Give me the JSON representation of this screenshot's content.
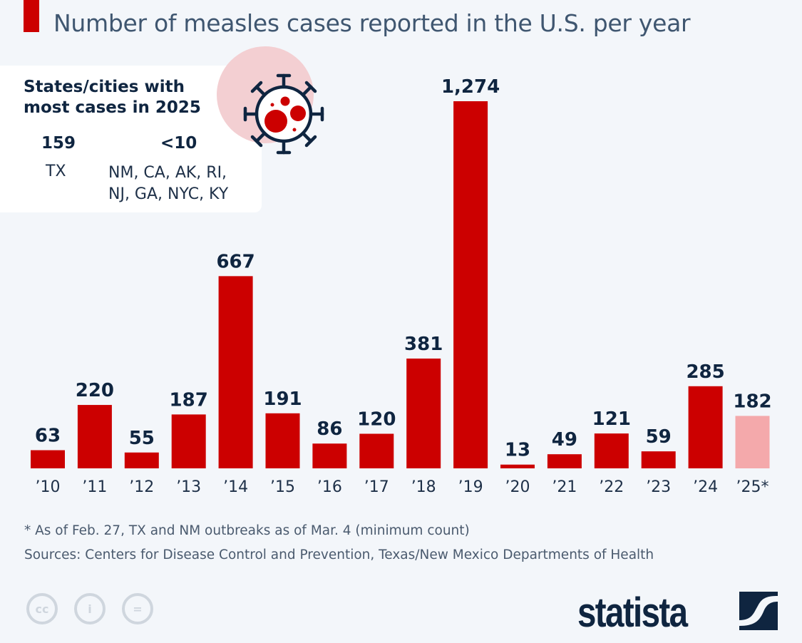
{
  "chart_data": {
    "type": "bar",
    "title": "Number of measles cases reported in the U.S. per year",
    "categories": [
      "’10",
      "’11",
      "’12",
      "’13",
      "’14",
      "’15",
      "’16",
      "’17",
      "’18",
      "’19",
      "’20",
      "’21",
      "’22",
      "’23",
      "’24",
      "’25*"
    ],
    "values": [
      63,
      220,
      55,
      187,
      667,
      191,
      86,
      120,
      381,
      1274,
      13,
      49,
      121,
      59,
      285,
      182
    ],
    "value_labels": [
      "63",
      "220",
      "55",
      "187",
      "667",
      "191",
      "86",
      "120",
      "381",
      "1,274",
      "13",
      "49",
      "121",
      "59",
      "285",
      "182"
    ],
    "highlight": {
      "index": 15,
      "note": "partial year"
    },
    "ylim": [
      0,
      1274
    ],
    "grid": false,
    "colors": {
      "bar": "#cc0000",
      "partial_bar": "#f4a9ab"
    }
  },
  "infobox": {
    "heading_line1": "States/cities with",
    "heading_line2": "most cases in 2025",
    "col1_value": "159",
    "col1_states": "TX",
    "col2_value": "<10",
    "col2_states_line1": "NM, CA, AK, RI,",
    "col2_states_line2": "NJ, GA, NYC, KY",
    "icon": "virus-icon"
  },
  "footnote": "* As of Feb. 27, TX and NM outbreaks as of Mar. 4 (minimum count)",
  "sources": "Sources: Centers for Disease Control and Prevention, Texas/New Mexico Departments of Health",
  "license_icons": {
    "cc": "cc",
    "by": "i",
    "nd": "="
  },
  "brand": "statista",
  "colors": {
    "accent": "#cc0000",
    "navy": "#0f2540",
    "background": "#f3f6fa"
  }
}
